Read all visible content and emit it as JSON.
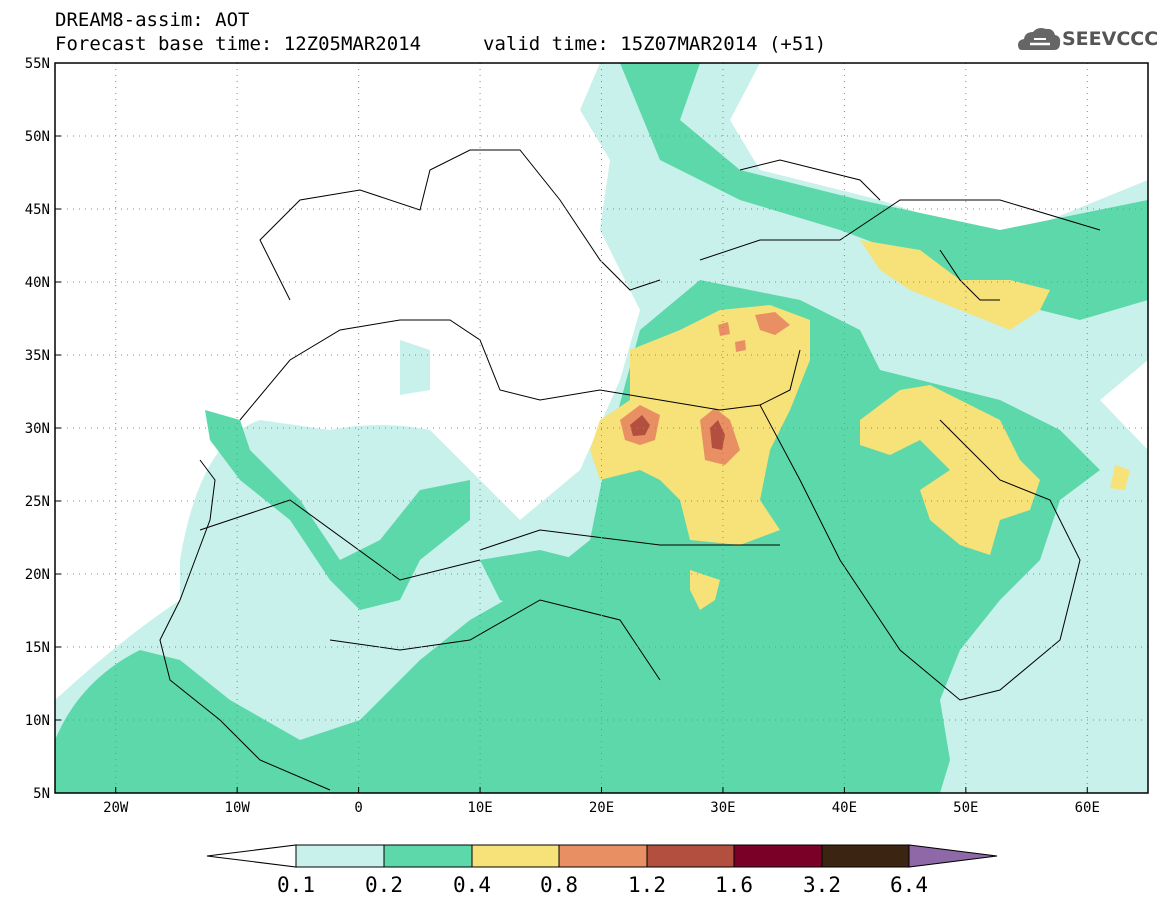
{
  "header": {
    "line1": "DREAM8-assim: AOT",
    "line2": "Forecast base time: 12Z05MAR2014",
    "line3": "valid time: 15Z07MAR2014 (+51)"
  },
  "logo": {
    "text": "SEEVCCC",
    "icon": "cloud-logo-icon"
  },
  "map": {
    "lon_range": [
      -25,
      65
    ],
    "lat_range": [
      5,
      55
    ],
    "lon_ticks": [
      {
        "v": -20,
        "label": "20W"
      },
      {
        "v": -10,
        "label": "10W"
      },
      {
        "v": 0,
        "label": "0"
      },
      {
        "v": 10,
        "label": "10E"
      },
      {
        "v": 20,
        "label": "20E"
      },
      {
        "v": 30,
        "label": "30E"
      },
      {
        "v": 40,
        "label": "40E"
      },
      {
        "v": 50,
        "label": "50E"
      },
      {
        "v": 60,
        "label": "60E"
      }
    ],
    "lat_ticks": [
      {
        "v": 55,
        "label": "55N"
      },
      {
        "v": 50,
        "label": "50N"
      },
      {
        "v": 45,
        "label": "45N"
      },
      {
        "v": 40,
        "label": "40N"
      },
      {
        "v": 35,
        "label": "35N"
      },
      {
        "v": 30,
        "label": "30N"
      },
      {
        "v": 25,
        "label": "25N"
      },
      {
        "v": 20,
        "label": "20N"
      },
      {
        "v": 15,
        "label": "15N"
      },
      {
        "v": 10,
        "label": "10N"
      },
      {
        "v": 5,
        "label": "5N"
      }
    ]
  },
  "colorbar": {
    "colors": [
      "#ffffff",
      "#c7f1ea",
      "#5cd8aa",
      "#f7e27a",
      "#e88f63",
      "#b24f3e",
      "#7a0028",
      "#3b2412",
      "#8f68a8"
    ],
    "labels": [
      "0.1",
      "0.2",
      "0.4",
      "0.8",
      "1.2",
      "1.6",
      "3.2",
      "6.4"
    ]
  }
}
